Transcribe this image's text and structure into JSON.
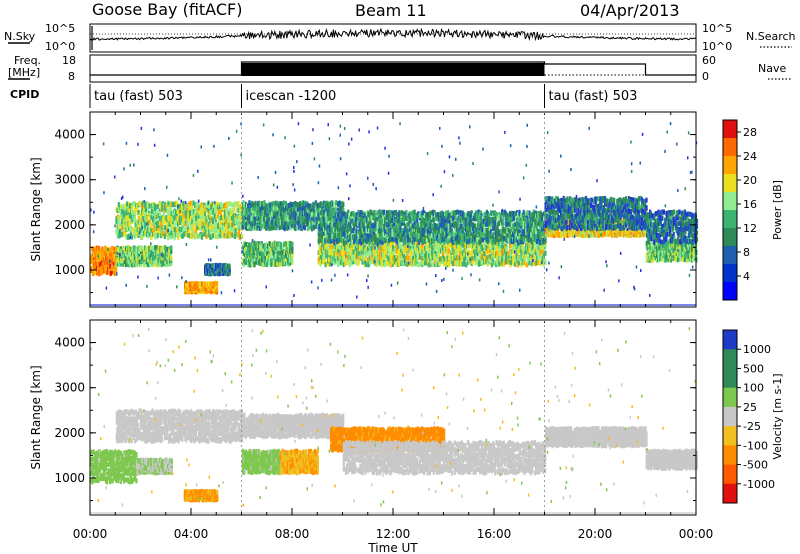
{
  "header": {
    "station": "Goose Bay (fitACF)",
    "beam": "Beam 11",
    "date": "04/Apr/2013"
  },
  "side_labels": {
    "nsky": "N.Sky",
    "freq_line1": "Freq.",
    "freq_line2": "[MHz]",
    "cpid": "CPID",
    "nsearch": "N.Search",
    "nave": "Nave"
  },
  "cpid_modes": [
    {
      "label": "tau (fast) 503",
      "start_hour": 0,
      "end_hour": 6
    },
    {
      "label": "icescan -1200",
      "start_hour": 6,
      "end_hour": 18
    },
    {
      "label": "tau (fast) 503",
      "start_hour": 18,
      "end_hour": 24
    }
  ],
  "strip_ticks": {
    "noise_left": [
      "10^5",
      "10^0"
    ],
    "noise_right": [
      "10^5",
      "10^0"
    ],
    "freq_left": [
      "18",
      "8"
    ],
    "nave_right": [
      "60",
      "0"
    ]
  },
  "colors": {
    "blue": "#2a3fc8",
    "green": "#2e8b57",
    "yellow": "#e8e020",
    "orange": "#ff8c00",
    "red": "#e01010",
    "gray": "#c8c8c8",
    "black": "#000000"
  },
  "chart_data": [
    {
      "type": "heatmap",
      "panel": "power",
      "xlabel": "",
      "ylabel": "Slant Range [km]",
      "x_ticks": [
        "00:00",
        "04:00",
        "08:00",
        "12:00",
        "16:00",
        "20:00",
        "00:00"
      ],
      "y_ticks": [
        "1000",
        "2000",
        "3000",
        "4000"
      ],
      "xlim_hours": [
        0,
        24
      ],
      "ylim_km": [
        180,
        4500
      ],
      "colorbar": {
        "label": "Power [dB]",
        "ticks": [
          "4",
          "8",
          "12",
          "16",
          "20",
          "24",
          "28"
        ],
        "range": [
          0,
          30
        ],
        "colors": [
          "#0000ff",
          "#0033cc",
          "#1f5faf",
          "#2e8b57",
          "#3cb371",
          "#90ee90",
          "#e8e020",
          "#ffa500",
          "#ff6a00",
          "#e01010"
        ]
      },
      "echo_bands": [
        {
          "t0": 0.0,
          "t1": 1.0,
          "r0": 900,
          "r1": 1500,
          "level": 22
        },
        {
          "t0": 1.0,
          "t1": 3.2,
          "r0": 1100,
          "r1": 1500,
          "level": 12
        },
        {
          "t0": 1.0,
          "t1": 6.0,
          "r0": 1700,
          "r1": 2500,
          "level": 14
        },
        {
          "t0": 3.7,
          "t1": 5.0,
          "r0": 500,
          "r1": 700,
          "level": 20
        },
        {
          "t0": 4.5,
          "t1": 5.5,
          "r0": 900,
          "r1": 1100,
          "level": 6
        },
        {
          "t0": 6.0,
          "t1": 8.0,
          "r0": 1100,
          "r1": 1600,
          "level": 12
        },
        {
          "t0": 6.0,
          "t1": 10.0,
          "r0": 1900,
          "r1": 2500,
          "level": 8
        },
        {
          "t0": 9.0,
          "t1": 18.0,
          "r0": 1100,
          "r1": 1800,
          "level": 14
        },
        {
          "t0": 9.0,
          "t1": 18.0,
          "r0": 1600,
          "r1": 2300,
          "level": 8
        },
        {
          "t0": 18.0,
          "t1": 22.0,
          "r0": 1750,
          "r1": 2100,
          "level": 18
        },
        {
          "t0": 18.0,
          "t1": 22.0,
          "r0": 1900,
          "r1": 2600,
          "level": 6
        },
        {
          "t0": 22.0,
          "t1": 24.0,
          "r0": 1200,
          "r1": 1600,
          "level": 12
        },
        {
          "t0": 22.0,
          "t1": 24.0,
          "r0": 1600,
          "r1": 2300,
          "level": 6
        }
      ]
    },
    {
      "type": "heatmap",
      "panel": "velocity",
      "xlabel": "Time UT",
      "ylabel": "Slant Range [km]",
      "x_ticks": [
        "00:00",
        "04:00",
        "08:00",
        "12:00",
        "16:00",
        "20:00",
        "00:00"
      ],
      "y_ticks": [
        "1000",
        "2000",
        "3000",
        "4000"
      ],
      "xlim_hours": [
        0,
        24
      ],
      "ylim_km": [
        180,
        4500
      ],
      "colorbar": {
        "label": "Velocity [m s-1]",
        "ticks": [
          "1000",
          "500",
          "100",
          "25",
          "-25",
          "-100",
          "-500",
          "-1000"
        ],
        "colors": [
          "#1e3cc8",
          "#2e8b57",
          "#2e8b57",
          "#7ec850",
          "#c8c8c8",
          "#f0c020",
          "#ff8c00",
          "#ff5a00",
          "#e01010"
        ]
      },
      "echo_bands": [
        {
          "t0": 0.0,
          "t1": 1.8,
          "r0": 900,
          "r1": 1600,
          "level": 60
        },
        {
          "t0": 1.8,
          "t1": 3.2,
          "r0": 1100,
          "r1": 1400,
          "level": 20
        },
        {
          "t0": 1.0,
          "t1": 6.0,
          "r0": 1800,
          "r1": 2500,
          "level": 0
        },
        {
          "t0": 3.7,
          "t1": 5.0,
          "r0": 500,
          "r1": 700,
          "level": -120
        },
        {
          "t0": 6.0,
          "t1": 7.5,
          "r0": 1100,
          "r1": 1600,
          "level": 50
        },
        {
          "t0": 7.5,
          "t1": 9.0,
          "r0": 1100,
          "r1": 1600,
          "level": -90
        },
        {
          "t0": 6.0,
          "t1": 10.0,
          "r0": 1900,
          "r1": 2400,
          "level": 0
        },
        {
          "t0": 9.5,
          "t1": 14.0,
          "r0": 1600,
          "r1": 2100,
          "level": -200
        },
        {
          "t0": 10.0,
          "t1": 18.0,
          "r0": 1100,
          "r1": 1800,
          "level": 0
        },
        {
          "t0": 18.0,
          "t1": 22.0,
          "r0": 1700,
          "r1": 2100,
          "level": 0
        },
        {
          "t0": 22.0,
          "t1": 24.0,
          "r0": 1200,
          "r1": 1600,
          "level": 0
        }
      ]
    }
  ]
}
